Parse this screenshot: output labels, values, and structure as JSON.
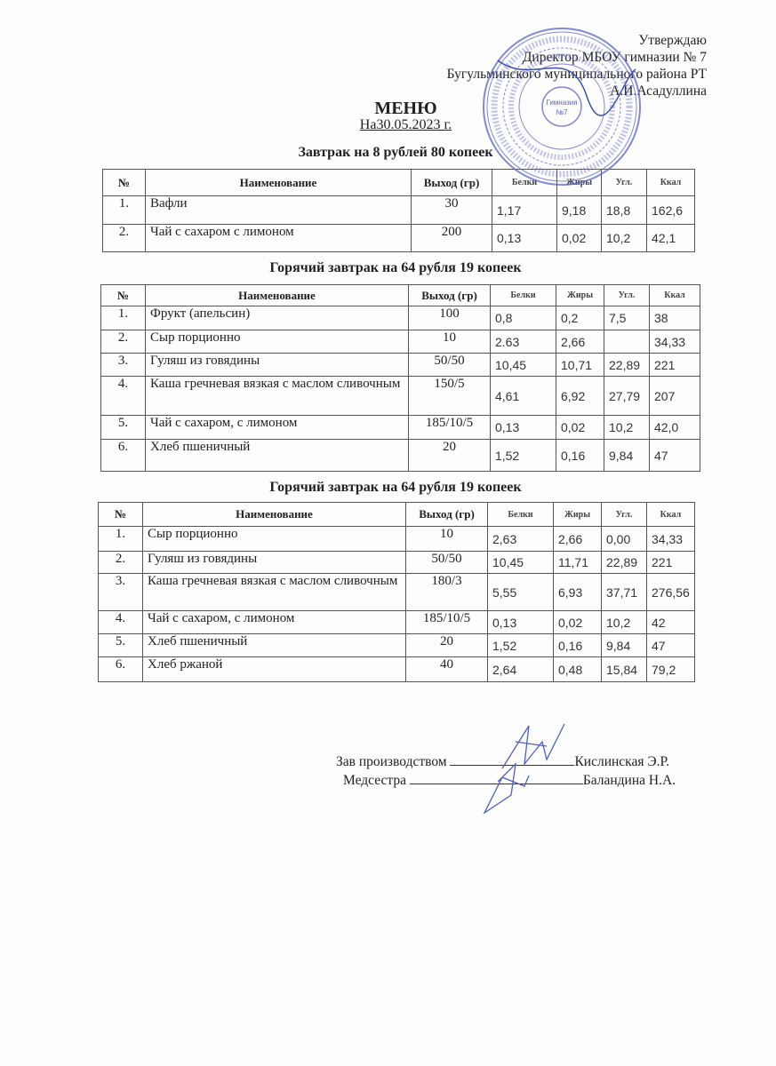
{
  "approval": {
    "line1": "Утверждаю",
    "line2": "Директор МБОУ гимназии № 7",
    "line3": "Бугульминского муниципального района РТ",
    "line4": "А.И.Асадуллина"
  },
  "stamp": {
    "center_text": "Гимназия №7",
    "color": "#5a63c8"
  },
  "title": "МЕНЮ",
  "date": "На30.05.2023 г.",
  "headers": [
    "№",
    "Наименование",
    "Выход (гр)",
    "Белки",
    "Жиры",
    "Угл.",
    "Ккал"
  ],
  "sections": [
    {
      "title": "Завтрак на 8 рублей 80 копеек",
      "rows": [
        [
          "1.",
          "Вафли",
          "30",
          "1,17",
          "9,18",
          "18,8",
          "162,6"
        ],
        [
          "2.",
          "Чай с сахаром с лимоном",
          "200",
          "0,13",
          "0,02",
          "10,2",
          "42,1"
        ]
      ]
    },
    {
      "title": "Горячий завтрак на 64 рубля 19 копеек",
      "rows": [
        [
          "1.",
          "Фрукт (апельсин)",
          "100",
          "0,8",
          "0,2",
          "7,5",
          "38"
        ],
        [
          "2.",
          "Сыр порционно",
          "10",
          "2.63",
          "2,66",
          "",
          "34,33"
        ],
        [
          "3.",
          "Гуляш из говядины",
          "50/50",
          "10,45",
          "10,71",
          "22,89",
          "221"
        ],
        [
          "4.",
          "Каша гречневая вязкая с маслом сливочным",
          "150/5",
          "4,61",
          "6,92",
          "27,79",
          "207"
        ],
        [
          "5.",
          "Чай с сахаром, с лимоном",
          "185/10/5",
          "0,13",
          "0,02",
          "10,2",
          "42,0"
        ],
        [
          "6.",
          "Хлеб пшеничный",
          "20",
          "1,52",
          "0,16",
          "9,84",
          "47"
        ]
      ]
    },
    {
      "title": "Горячий завтрак на 64 рубля 19 копеек",
      "rows": [
        [
          "1.",
          "Сыр порционно",
          "10",
          "2,63",
          "2,66",
          "0,00",
          "34,33"
        ],
        [
          "2.",
          "Гуляш из говядины",
          "50/50",
          "10,45",
          "11,71",
          "22,89",
          "221"
        ],
        [
          "3.",
          "Каша гречневая вязкая с маслом сливочным",
          "180/3",
          "5,55",
          "6,93",
          "37,71",
          "276,56"
        ],
        [
          "4.",
          "Чай с сахаром, с лимоном",
          "185/10/5",
          "0,13",
          "0,02",
          "10,2",
          "42"
        ],
        [
          "5.",
          "Хлеб пшеничный",
          "20",
          "1,52",
          "0,16",
          "9,84",
          "47"
        ],
        [
          "6.",
          "Хлеб ржаной",
          "40",
          "2,64",
          "0,48",
          "15,84",
          "79,2"
        ]
      ]
    }
  ],
  "signatures": [
    {
      "role": "Зав производством",
      "name": "Кислинская Э.Р."
    },
    {
      "role": "Медсестра",
      "name": "Баландина Н.А."
    }
  ]
}
